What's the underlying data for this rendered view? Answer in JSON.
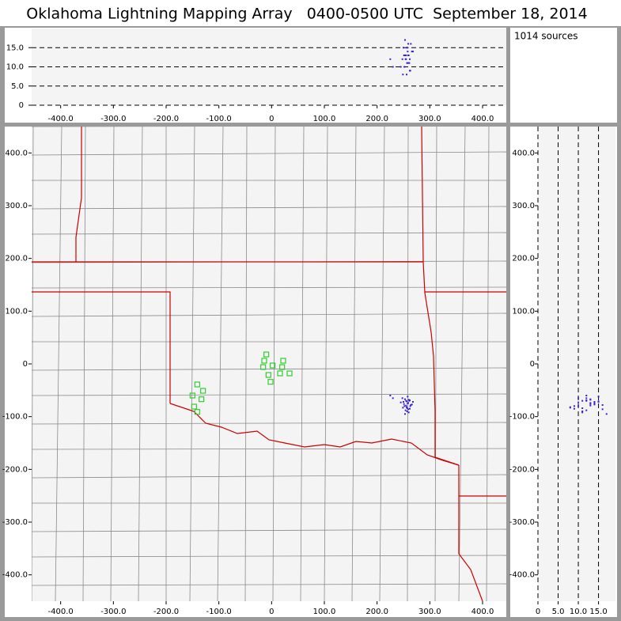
{
  "title": "Oklahoma Lightning Mapping Array   0400-0500 UTC  September 18, 2014",
  "info": "1014 sources",
  "chart_data": [
    {
      "type": "scatter",
      "xlim": [
        -455,
        445
      ],
      "ylim": [
        0,
        20
      ],
      "xticks": [
        {
          "value": -400,
          "label": "-400.0"
        },
        {
          "value": -300,
          "label": "-300.0"
        },
        {
          "value": -200,
          "label": "-200.0"
        },
        {
          "value": -100,
          "label": "-100.0"
        },
        0,
        {
          "value": 100,
          "label": "100.0"
        },
        {
          "value": 200,
          "label": "200.0"
        },
        {
          "value": 300,
          "label": "300.0"
        },
        {
          "value": 400,
          "label": "400.0"
        }
      ],
      "yticks": [
        0,
        {
          "value": 5,
          "label": "5.0"
        },
        {
          "value": 10,
          "label": "10.0"
        },
        {
          "value": 15,
          "label": "15.0"
        }
      ],
      "grid": "dashed",
      "series": [
        {
          "color": "#3a22d6",
          "x": [
            255,
            258,
            252,
            260,
            262,
            250,
            257,
            264,
            248,
            256,
            259,
            253,
            261,
            266,
            245,
            254,
            258,
            263,
            251,
            257,
            225,
            230,
            268,
            255,
            259,
            262,
            249,
            256,
            260,
            253
          ],
          "values": [
            12,
            14,
            10,
            13,
            9,
            15,
            11,
            16,
            12,
            8,
            13,
            17,
            11,
            14,
            10,
            12,
            15,
            9,
            13,
            11,
            12,
            10,
            14,
            13,
            16,
            12,
            8,
            15,
            11,
            13
          ]
        }
      ]
    },
    {
      "type": "scatter",
      "xlim": [
        -455,
        445
      ],
      "ylim": [
        -450,
        450
      ],
      "xticks": [
        {
          "value": -400,
          "label": "-400.0"
        },
        {
          "value": -300,
          "label": "-300.0"
        },
        {
          "value": -200,
          "label": "-200.0"
        },
        {
          "value": -100,
          "label": "-100.0"
        },
        0,
        {
          "value": 100,
          "label": "100.0"
        },
        {
          "value": 200,
          "label": "200.0"
        },
        {
          "value": 300,
          "label": "300.0"
        },
        {
          "value": 400,
          "label": "400.0"
        }
      ],
      "yticks": [
        {
          "value": -400,
          "label": "-400.0"
        },
        {
          "value": -300,
          "label": "-300.0"
        },
        {
          "value": -200,
          "label": "-200.0"
        },
        {
          "value": -100,
          "label": "-100.0"
        },
        0,
        {
          "value": 100,
          "label": "100.0"
        },
        {
          "value": 200,
          "label": "200.0"
        },
        {
          "value": 300,
          "label": "300.0"
        },
        {
          "value": 400,
          "label": "400.0"
        }
      ],
      "series": [
        {
          "color": "#3a22d6",
          "x": [
            255,
            258,
            252,
            260,
            262,
            250,
            257,
            264,
            248,
            256,
            259,
            253,
            261,
            266,
            245,
            254,
            258,
            263,
            251,
            257,
            225,
            230,
            268,
            255,
            259,
            262,
            249,
            256,
            260,
            253
          ],
          "values": [
            -70,
            -75,
            -80,
            -68,
            -85,
            -72,
            -90,
            -78,
            -65,
            -82,
            -74,
            -95,
            -70,
            -77,
            -73,
            -88,
            -62,
            -80,
            -76,
            -84,
            -60,
            -65,
            -72,
            -79,
            -86,
            -69,
            -83,
            -71,
            -92,
            -67
          ]
        },
        {
          "color": "#33cc33",
          "marker": "square",
          "x": [
            -10,
            -14,
            2,
            -16,
            22,
            20,
            34,
            16,
            -6,
            -2,
            -141,
            -130,
            -150,
            -133,
            -147,
            -141
          ],
          "values": [
            18,
            6,
            -3,
            -6,
            6,
            -6,
            -18,
            -18,
            -21,
            -34,
            -39,
            -51,
            -60,
            -67,
            -81,
            -91
          ]
        }
      ]
    },
    {
      "type": "scatter",
      "xlim": [
        0,
        19.2
      ],
      "ylim": [
        -450,
        450
      ],
      "xticks": [
        0,
        {
          "value": 5,
          "label": "5.0"
        },
        {
          "value": 10,
          "label": "10.0"
        },
        {
          "value": 15,
          "label": "15.0"
        }
      ],
      "yticks": [
        {
          "value": -400,
          "label": "-400.0"
        },
        {
          "value": -300,
          "label": "-300.0"
        },
        {
          "value": -200,
          "label": "-200.0"
        },
        {
          "value": -100,
          "label": "-100.0"
        },
        0,
        {
          "value": 100,
          "label": "100.0"
        },
        {
          "value": 200,
          "label": "200.0"
        },
        {
          "value": 300,
          "label": "300.0"
        },
        {
          "value": 400,
          "label": "400.0"
        }
      ],
      "grid": "dashed",
      "series": [
        {
          "color": "#3a22d6",
          "x": [
            12,
            14,
            10,
            13,
            9,
            15,
            11,
            16,
            12,
            8,
            13,
            17,
            11,
            14,
            10,
            12,
            15,
            9,
            13,
            11,
            12,
            10,
            14,
            13,
            16,
            12,
            8,
            15,
            11,
            13
          ],
          "values": [
            -70,
            -75,
            -80,
            -68,
            -85,
            -72,
            -90,
            -78,
            -65,
            -82,
            -74,
            -95,
            -70,
            -77,
            -73,
            -88,
            -62,
            -80,
            -76,
            -84,
            -60,
            -65,
            -72,
            -79,
            -86,
            -69,
            -83,
            -71,
            -92,
            -67
          ]
        }
      ]
    }
  ]
}
